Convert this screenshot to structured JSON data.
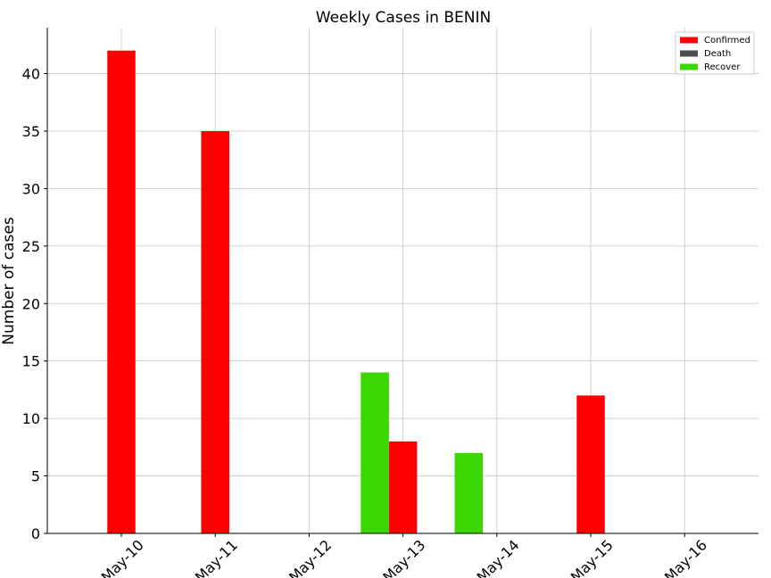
{
  "chart_data": {
    "type": "bar",
    "title": "Weekly Cases in BENIN",
    "xlabel": "",
    "ylabel": "Number of cases",
    "categories": [
      "May-10",
      "May-11",
      "May-12",
      "May-13",
      "May-14",
      "May-15",
      "May-16"
    ],
    "series": [
      {
        "name": "Confirmed",
        "color": "#ff0000",
        "values": [
          42,
          35,
          0,
          8,
          0,
          12,
          0
        ]
      },
      {
        "name": "Death",
        "color": "#4d4d4d",
        "values": [
          0,
          0,
          0,
          0,
          0,
          0,
          0
        ]
      },
      {
        "name": "Recover",
        "color": "#3cd600",
        "values": [
          0,
          0,
          0,
          14,
          7,
          0,
          0
        ]
      }
    ],
    "ylim": [
      0,
      44
    ],
    "yticks": [
      0,
      5,
      10,
      15,
      20,
      25,
      30,
      35,
      40
    ],
    "grid": true,
    "legend_position": "top-right"
  }
}
